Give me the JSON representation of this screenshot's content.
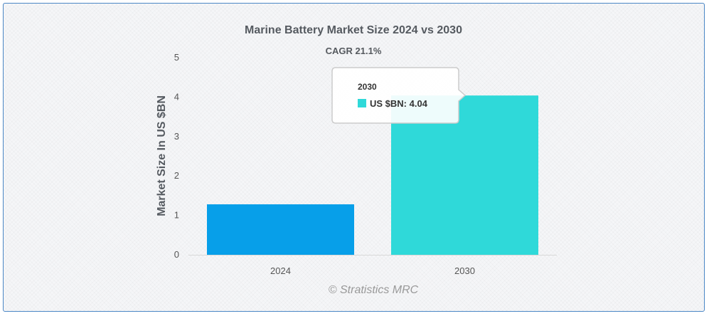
{
  "chart_data": {
    "type": "bar",
    "title": "Marine Battery Market Size 2024 vs 2030",
    "subtitle": "CAGR 21.1%",
    "ylabel": "Market Size In US $BN",
    "xlabel": "",
    "categories": [
      "2024",
      "2030"
    ],
    "series": [
      {
        "name": "US $BN",
        "values": [
          1.28,
          4.04
        ],
        "colors": [
          "#079fe9",
          "#2fd9d9"
        ]
      }
    ],
    "ylim": [
      0,
      5
    ],
    "yticks": [
      0,
      1,
      2,
      3,
      4,
      5
    ],
    "grid": false,
    "legend": "none",
    "tooltip": {
      "title": "2030",
      "label": "US $BN: 4.04",
      "color": "#2fd9d9"
    }
  },
  "credit": "© Stratistics MRC"
}
